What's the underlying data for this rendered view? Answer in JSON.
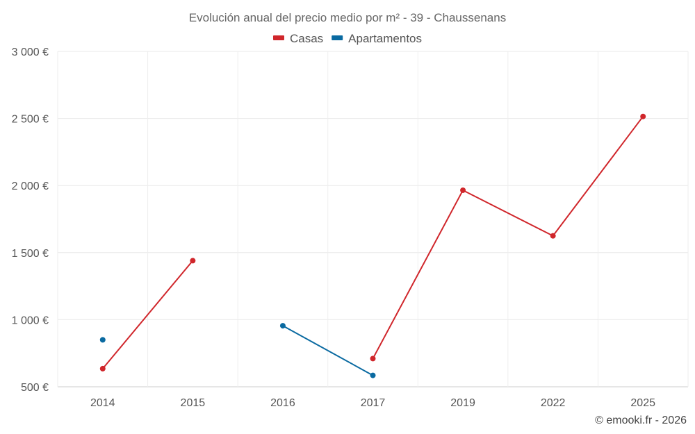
{
  "chart_data": {
    "type": "line",
    "title": "Evolución anual del precio medio por m² - 39 - Chaussenans",
    "categories": [
      "2014",
      "2015",
      "2016",
      "2017",
      "2019",
      "2022",
      "2025"
    ],
    "ylim": [
      500,
      3000
    ],
    "yticks": [
      500,
      1000,
      1500,
      2000,
      2500,
      3000
    ],
    "ytick_labels": [
      "500 €",
      "1 000 €",
      "1 500 €",
      "2 000 €",
      "2 500 €",
      "3 000 €"
    ],
    "grid": true,
    "legend_position": "top-center",
    "series": [
      {
        "name": "Casas",
        "color": "#d0262b",
        "values": [
          635,
          1440,
          null,
          710,
          1965,
          1625,
          2515
        ]
      },
      {
        "name": "Apartamentos",
        "color": "#0a6aa1",
        "values": [
          850,
          null,
          955,
          585,
          null,
          null,
          null
        ]
      }
    ]
  },
  "credit": "© emooki.fr - 2026"
}
